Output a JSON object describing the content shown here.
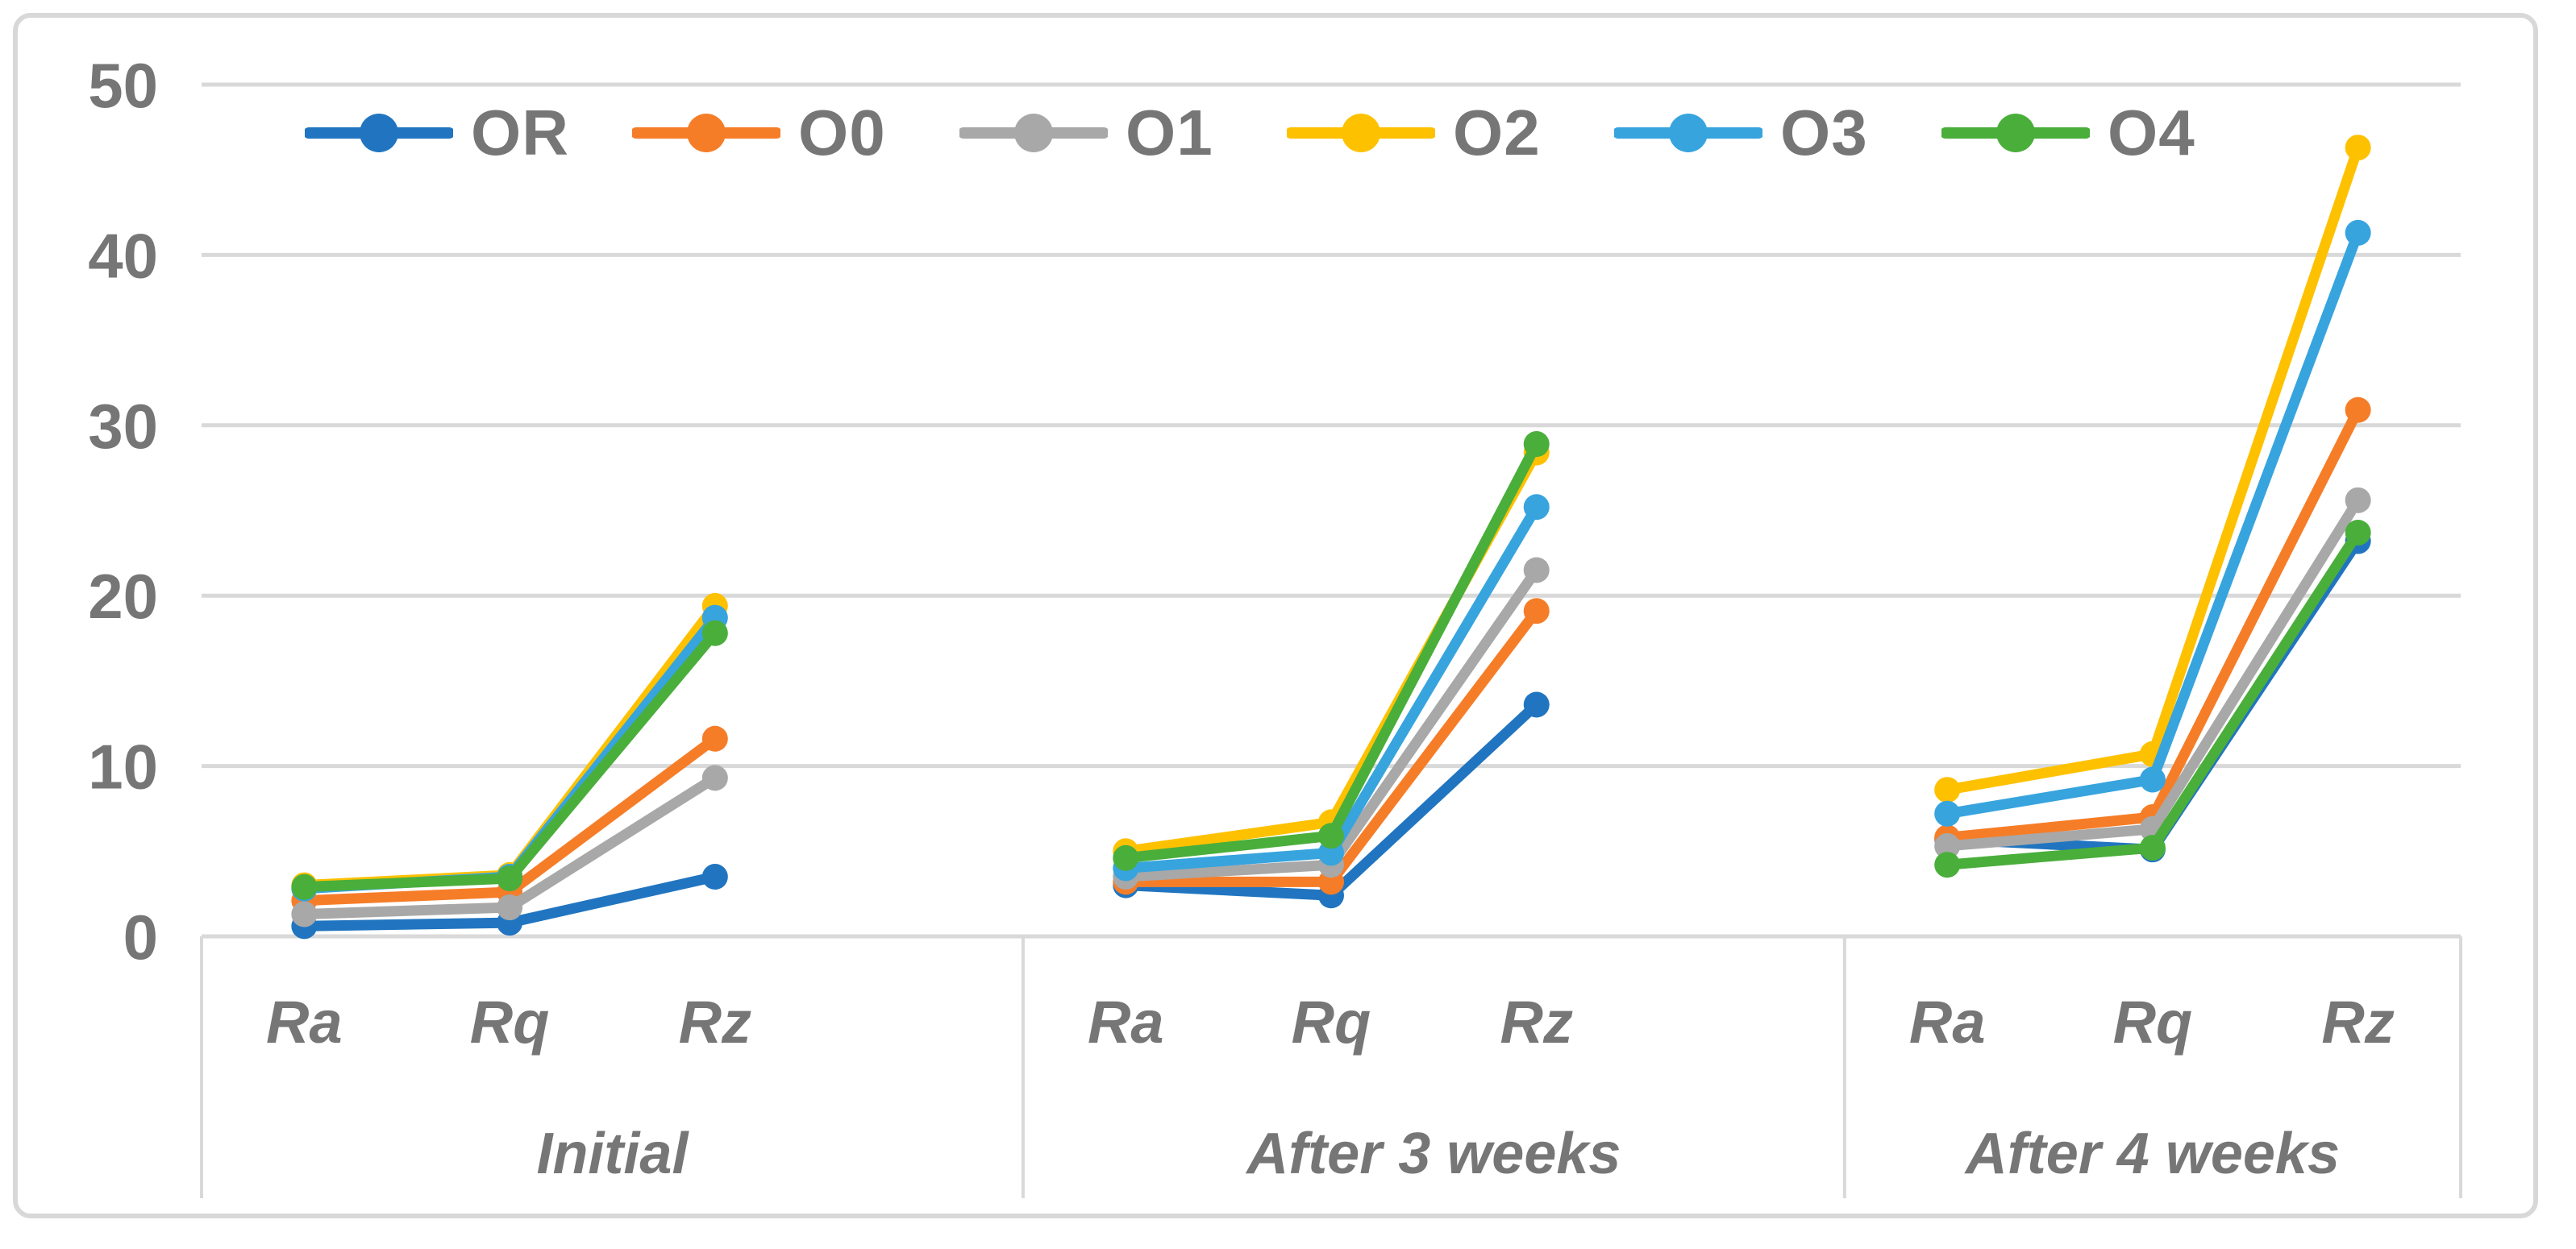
{
  "page": {
    "background": "#FFFFFF",
    "frame_color": "#D8D8D8",
    "grid_color": "#D9D9D9",
    "axis_text_color": "#767676",
    "legend_text_color": "#767676"
  },
  "chart_data": {
    "type": "line",
    "title": "",
    "groups": [
      "Initial",
      "After 3 weeks",
      "After 4 weeks"
    ],
    "categories": [
      "Ra",
      "Rq",
      "Rz"
    ],
    "ylim": [
      0,
      50
    ],
    "yticks": [
      0,
      10,
      20,
      30,
      40,
      50
    ],
    "grid": true,
    "legend_position": "top",
    "marker": "circle",
    "series": [
      {
        "name": "OR",
        "color": "#2175C0",
        "values": [
          [
            0.6,
            0.8,
            3.5
          ],
          [
            3.0,
            2.4,
            13.6
          ],
          [
            5.7,
            5.1,
            23.2
          ]
        ]
      },
      {
        "name": "O0",
        "color": "#F67D28",
        "values": [
          [
            2.1,
            2.6,
            11.6
          ],
          [
            3.2,
            3.2,
            19.1
          ],
          [
            5.8,
            7.0,
            30.9
          ]
        ]
      },
      {
        "name": "O1",
        "color": "#A8A8A8",
        "values": [
          [
            1.3,
            1.7,
            9.3
          ],
          [
            3.5,
            4.2,
            21.5
          ],
          [
            5.3,
            6.3,
            25.6
          ]
        ]
      },
      {
        "name": "O2",
        "color": "#FEC100",
        "values": [
          [
            3.0,
            3.6,
            19.4
          ],
          [
            5.0,
            6.7,
            28.4
          ],
          [
            8.6,
            10.7,
            46.3
          ]
        ]
      },
      {
        "name": "O3",
        "color": "#37A4DE",
        "values": [
          [
            2.8,
            3.5,
            18.7
          ],
          [
            4.0,
            4.9,
            25.2
          ],
          [
            7.2,
            9.2,
            41.3
          ]
        ]
      },
      {
        "name": "O4",
        "color": "#4AAE3B",
        "values": [
          [
            2.9,
            3.4,
            17.8
          ],
          [
            4.6,
            5.9,
            28.9
          ],
          [
            4.2,
            5.2,
            23.7
          ]
        ]
      }
    ]
  }
}
